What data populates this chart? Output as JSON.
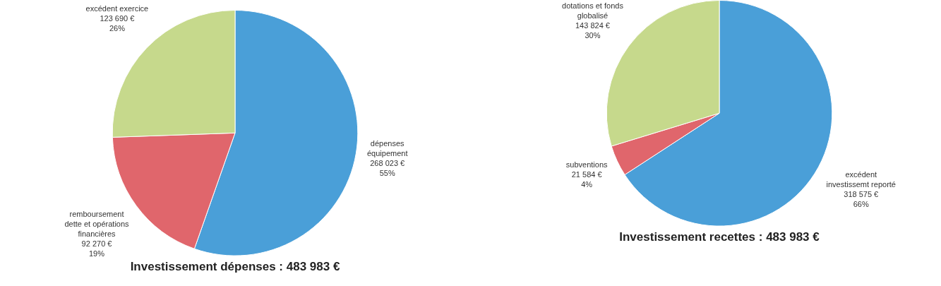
{
  "chart_data": [
    {
      "type": "pie",
      "title": "Investissement dépenses : 483 983 €",
      "categories": [
        "dépenses équipement",
        "remboursement dette et opérations financières",
        "excédent exercice"
      ],
      "values": [
        268023,
        92270,
        123690
      ],
      "colors": [
        "#4a9fd8",
        "#e0666c",
        "#c6d98c"
      ],
      "value_labels": [
        "268 023 €\n55%",
        "92 270 €\n19%",
        "123 690 €\n26%"
      ],
      "legend": false
    },
    {
      "type": "pie",
      "title": "Investissement recettes : 483 983 €",
      "categories": [
        "excédent investissemt reporté",
        "subventions",
        "dotations et fonds globalisé"
      ],
      "values": [
        318575,
        21584,
        143824
      ],
      "colors": [
        "#4a9fd8",
        "#e0666c",
        "#c6d98c"
      ],
      "value_labels": [
        "318 575 €\n66%",
        "21 584 €\n4%",
        "143 824 €\n30%"
      ],
      "legend": false
    }
  ]
}
